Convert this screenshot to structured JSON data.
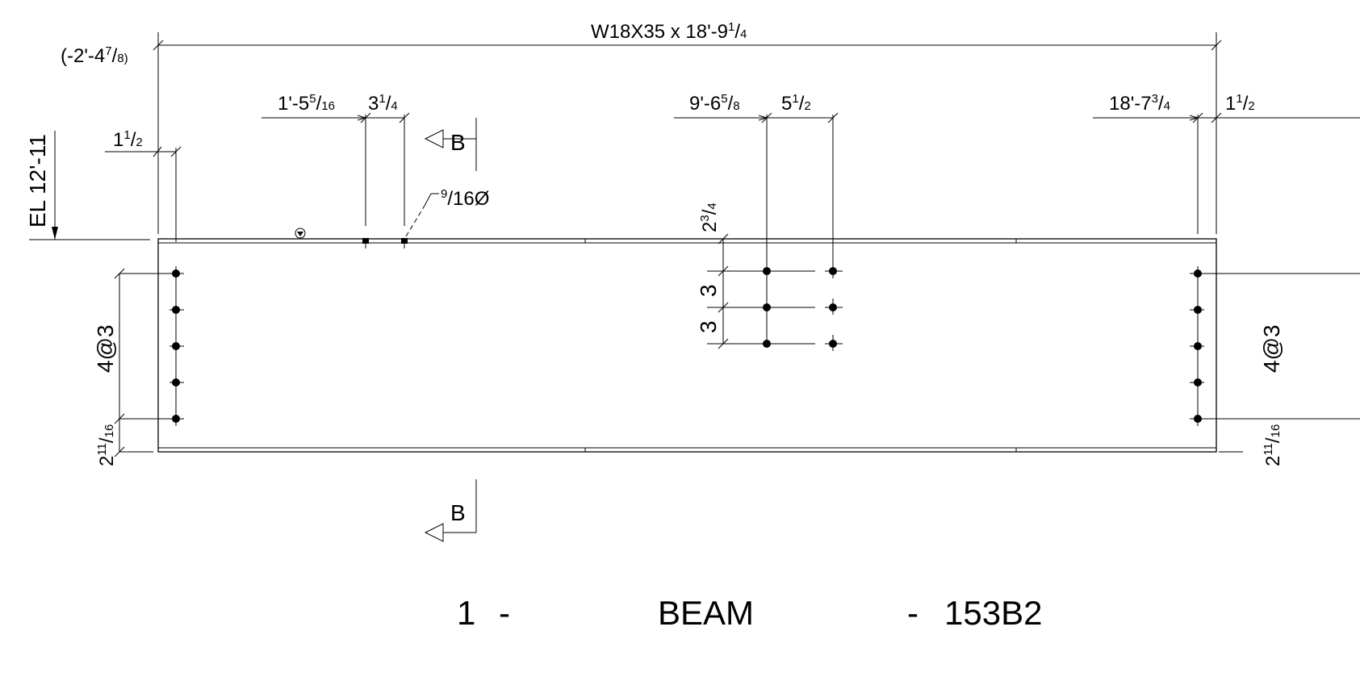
{
  "member": {
    "size_label": "W18X35 x 18'-9",
    "size_frac_num": "1",
    "size_frac_den": "4",
    "offset_label": "(-2'-4",
    "offset_frac_num": "7",
    "offset_frac_den": "8)",
    "elevation": "EL 12'-11"
  },
  "dimensions": {
    "left_edge_int": "1",
    "left_edge_num": "1",
    "left_edge_den": "2",
    "hole1_pos": "1'-5",
    "hole1_pos_num": "5",
    "hole1_pos_den": "16",
    "hole_spacing_int": "3",
    "hole_spacing_num": "1",
    "hole_spacing_den": "4",
    "hole_dia_num": "9",
    "hole_dia_den": "16Ø",
    "mid_pos": "9'-6",
    "mid_pos_num": "5",
    "mid_pos_den": "8",
    "mid_spacing_int": "5",
    "mid_spacing_num": "1",
    "mid_spacing_den": "2",
    "right_pos": "18'-7",
    "right_pos_num": "3",
    "right_pos_den": "4",
    "right_edge_int": "1",
    "right_edge_num": "1",
    "right_edge_den": "2",
    "mid_top_int": "2",
    "mid_top_num": "3",
    "mid_top_den": "4",
    "mid_gauge_1": "3",
    "mid_gauge_2": "3",
    "bolt_pattern_left": "4@3",
    "bolt_pattern_right": "4@3",
    "bottom_edge_int_left": "2",
    "bottom_edge_num_left": "11",
    "bottom_edge_den_left": "16",
    "bottom_edge_int_right": "2",
    "bottom_edge_num_right": "11",
    "bottom_edge_den_right": "16"
  },
  "section": {
    "top": "B",
    "bottom": "B"
  },
  "title_block": {
    "quantity": "1",
    "sep1": "-",
    "description": "BEAM",
    "sep2": "-",
    "mark": "153B2"
  }
}
